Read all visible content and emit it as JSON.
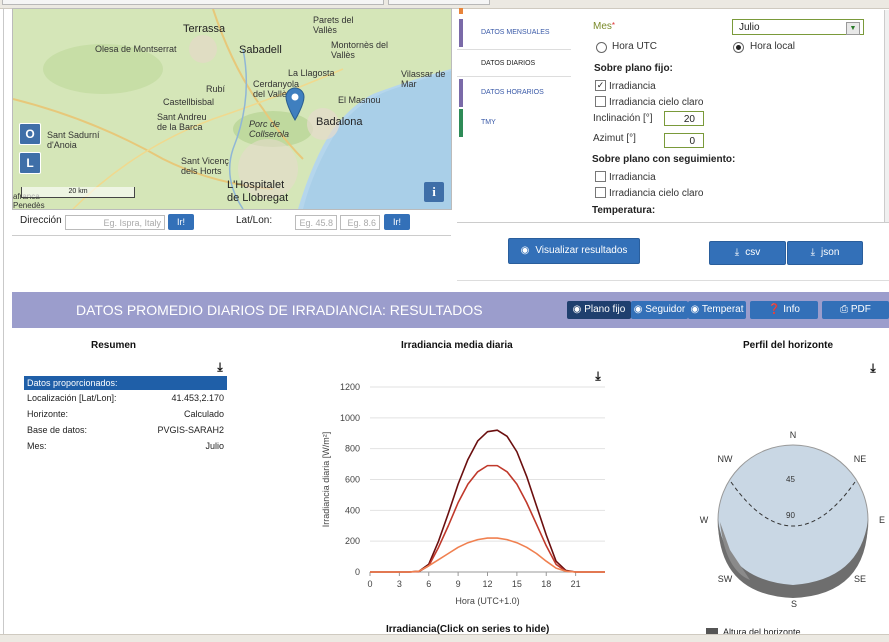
{
  "map": {
    "labels": [
      "Terrassa",
      "Parets del Vallès",
      "Olesa de Montserrat",
      "Sabadell",
      "Montornès del Vallès",
      "La Llagosta",
      "Cerdanyola del Vallès",
      "Rubí",
      "Vilassar de Mar",
      "El Masnou",
      "Castellbisbal",
      "Sant Andreu de la Barca",
      "Porc de Collserola",
      "Badalona",
      "Sant Sadurní d'Anoia",
      "Sant Vicenç dels Horts",
      "L'Hospitalet de Llobregat",
      "afranca Penedès"
    ],
    "zoom_in": "O",
    "zoom_out": "L",
    "scale": "20 km",
    "info": "i"
  },
  "search": {
    "address_label": "Dirección",
    "address_placeholder": "Eg. Ispra, Italy",
    "go": "Ir!",
    "latlon_label": "Lat/Lon:",
    "lat_placeholder": "Eg. 45.8",
    "lon_placeholder": "Eg. 8.6"
  },
  "tabs": [
    {
      "label": "DATOS MENSUALES",
      "color": "#7a6aa8"
    },
    {
      "label": "DATOS DIARIOS",
      "color": "#ffffff"
    },
    {
      "label": "DATOS HORARIOS",
      "color": "#7a6aa8"
    },
    {
      "label": "TMY",
      "color": "#2e8b57"
    }
  ],
  "form": {
    "mes_label": "Mes",
    "mes_required": "*",
    "mes_value": "Julio",
    "hora_utc": "Hora UTC",
    "hora_local": "Hora local",
    "plano_fijo": "Sobre plano fijo:",
    "irradiancia": "Irradiancia",
    "irradiancia_cielo": "Irradiancia cielo claro",
    "inclinacion_label": "Inclinación [°]",
    "inclinacion_value": "20",
    "azimut_label": "Azimut [°]",
    "azimut_value": "0",
    "plano_seguimiento": "Sobre plano con seguimiento:",
    "irradiancia2": "Irradiancia",
    "irradiancia_cielo2": "Irradiancia cielo claro",
    "temperatura": "Temperatura:"
  },
  "actions": {
    "visualizar": "Visualizar resultados",
    "csv": "csv",
    "json": "json"
  },
  "results": {
    "title": "DATOS PROMEDIO DIARIOS DE IRRADIANCIA: RESULTADOS",
    "btn_plano": "Plano fijo",
    "btn_seguidor": "Seguidor",
    "btn_temp": "Temperat",
    "btn_info": "Info",
    "btn_pdf": "PDF"
  },
  "summary": {
    "title": "Resumen",
    "header": "Datos proporcionados:",
    "rows": [
      {
        "k": "Localización [Lat/Lon]:",
        "v": "41.453,2.170"
      },
      {
        "k": "Horizonte:",
        "v": "Calculado"
      },
      {
        "k": "Base de datos:",
        "v": "PVGIS-SARAH2"
      },
      {
        "k": "Mes:",
        "v": "Julio"
      }
    ]
  },
  "chart_title": "Irradiancia media diaria",
  "chart_footer": "Irradiancia(Click on series to hide)",
  "chart_data": {
    "type": "line",
    "title": "Irradiancia media diaria",
    "xlabel": "Hora (UTC+1.0)",
    "ylabel": "Irradiancia diaria [W/m²]",
    "xlim": [
      0,
      24
    ],
    "ylim": [
      0,
      1200
    ],
    "xticks": [
      0,
      3,
      6,
      9,
      12,
      15,
      18,
      21
    ],
    "yticks": [
      0,
      200,
      400,
      600,
      800,
      1000,
      1200
    ],
    "grid": true,
    "x": [
      0,
      4,
      5,
      6,
      7,
      8,
      9,
      10,
      11,
      12,
      13,
      14,
      15,
      16,
      17,
      18,
      19,
      20,
      21,
      24
    ],
    "series": [
      {
        "color": "#6b0f0f",
        "values": [
          0,
          0,
          5,
          50,
          200,
          380,
          570,
          730,
          850,
          910,
          920,
          880,
          780,
          620,
          430,
          240,
          70,
          10,
          0,
          0
        ]
      },
      {
        "color": "#c0392b",
        "values": [
          0,
          0,
          3,
          40,
          160,
          300,
          450,
          570,
          650,
          690,
          690,
          650,
          570,
          450,
          310,
          170,
          50,
          5,
          0,
          0
        ]
      },
      {
        "color": "#f08050",
        "values": [
          0,
          0,
          5,
          40,
          80,
          120,
          160,
          190,
          210,
          220,
          220,
          210,
          190,
          160,
          120,
          70,
          25,
          5,
          0,
          0
        ]
      }
    ]
  },
  "horizon": {
    "title": "Perfil del horizonte",
    "dirs": [
      "N",
      "NE",
      "E",
      "SE",
      "S",
      "SW",
      "W",
      "NW"
    ],
    "rings": [
      "45",
      "90"
    ],
    "legend": "Altura del horizonte"
  }
}
